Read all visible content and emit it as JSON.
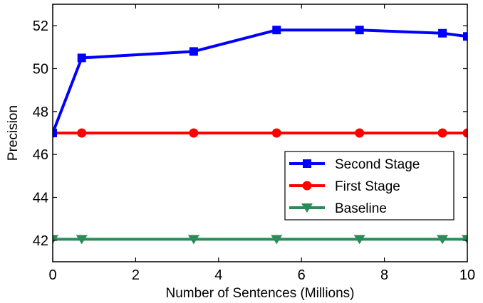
{
  "chart_data": {
    "type": "line",
    "xlabel": "Number of Sentences (Millions)",
    "ylabel": "Precision",
    "xlim": [
      0,
      10
    ],
    "ylim": [
      41,
      53
    ],
    "xticks": [
      "0",
      "2",
      "4",
      "6",
      "8",
      "10"
    ],
    "yticks": [
      "42",
      "44",
      "46",
      "48",
      "50",
      "52"
    ],
    "grid": false,
    "legend_position": "right",
    "series": [
      {
        "name": "Second Stage",
        "color": "#0000ff",
        "marker": "square",
        "x": [
          0,
          0.7,
          3.4,
          5.4,
          7.4,
          9.4,
          10
        ],
        "y": [
          47.0,
          50.5,
          50.8,
          51.8,
          51.8,
          51.65,
          51.5
        ]
      },
      {
        "name": "First Stage",
        "color": "#ff0000",
        "marker": "circle",
        "x": [
          0,
          0.7,
          3.4,
          5.4,
          7.4,
          9.4,
          10
        ],
        "y": [
          47.0,
          47.0,
          47.0,
          47.0,
          47.0,
          47.0,
          47.0
        ]
      },
      {
        "name": "Baseline",
        "color": "#2e8b57",
        "marker": "triangle-down",
        "x": [
          0,
          0.7,
          3.4,
          5.4,
          7.4,
          9.4,
          10
        ],
        "y": [
          42.05,
          42.05,
          42.05,
          42.05,
          42.05,
          42.05,
          42.05
        ]
      }
    ]
  }
}
